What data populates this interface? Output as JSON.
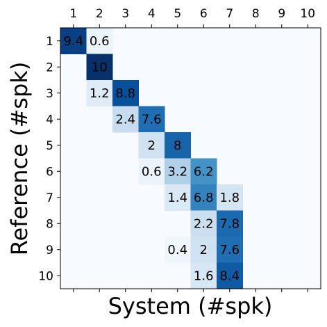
{
  "chart_data": {
    "type": "heatmap",
    "xlabel": "System (#spk)",
    "ylabel": "Reference (#spk)",
    "x_categories": [
      "1",
      "2",
      "3",
      "4",
      "5",
      "6",
      "7",
      "8",
      "9",
      "10"
    ],
    "y_categories": [
      "1",
      "2",
      "3",
      "4",
      "5",
      "6",
      "7",
      "8",
      "9",
      "10"
    ],
    "colormap": "Blues",
    "values": [
      [
        9.4,
        0.6,
        null,
        null,
        null,
        null,
        null,
        null,
        null,
        null
      ],
      [
        null,
        10,
        null,
        null,
        null,
        null,
        null,
        null,
        null,
        null
      ],
      [
        null,
        1.2,
        8.8,
        null,
        null,
        null,
        null,
        null,
        null,
        null
      ],
      [
        null,
        null,
        2.4,
        7.6,
        null,
        null,
        null,
        null,
        null,
        null
      ],
      [
        null,
        null,
        null,
        2,
        8,
        null,
        null,
        null,
        null,
        null
      ],
      [
        null,
        null,
        null,
        0.6,
        3.2,
        6.2,
        null,
        null,
        null,
        null
      ],
      [
        null,
        null,
        null,
        null,
        1.4,
        6.8,
        1.8,
        null,
        null,
        null
      ],
      [
        null,
        null,
        null,
        null,
        null,
        2.2,
        7.8,
        null,
        null,
        null
      ],
      [
        null,
        null,
        null,
        null,
        0.4,
        2,
        7.6,
        null,
        null,
        null
      ],
      [
        null,
        null,
        null,
        null,
        null,
        1.6,
        8.4,
        null,
        null,
        null
      ]
    ]
  }
}
